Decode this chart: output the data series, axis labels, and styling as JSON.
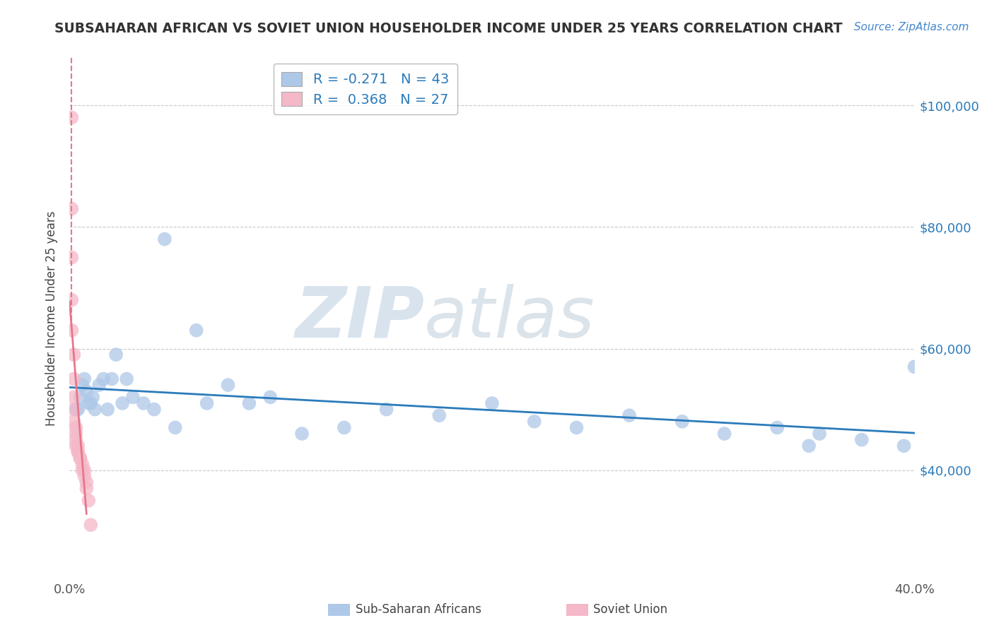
{
  "title": "SUBSAHARAN AFRICAN VS SOVIET UNION HOUSEHOLDER INCOME UNDER 25 YEARS CORRELATION CHART",
  "source": "Source: ZipAtlas.com",
  "ylabel": "Householder Income Under 25 years",
  "xlim": [
    0.0,
    0.4
  ],
  "ylim": [
    22000,
    108000
  ],
  "yticks": [
    40000,
    60000,
    80000,
    100000
  ],
  "ytick_labels": [
    "$40,000",
    "$60,000",
    "$80,000",
    "$100,000"
  ],
  "xticks": [
    0.0,
    0.05,
    0.1,
    0.15,
    0.2,
    0.25,
    0.3,
    0.35,
    0.4
  ],
  "xtick_labels": [
    "0.0%",
    "",
    "",
    "",
    "",
    "",
    "",
    "",
    "40.0%"
  ],
  "blue_R": -0.271,
  "blue_N": 43,
  "pink_R": 0.368,
  "pink_N": 27,
  "blue_color": "#aec8e8",
  "pink_color": "#f4b8c8",
  "blue_line_color": "#2b7bba",
  "pink_line_color": "#e8768a",
  "watermark_ZIP": "ZIP",
  "watermark_atlas": "atlas",
  "blue_scatter_x": [
    0.003,
    0.004,
    0.005,
    0.006,
    0.007,
    0.008,
    0.009,
    0.01,
    0.011,
    0.012,
    0.014,
    0.016,
    0.018,
    0.02,
    0.022,
    0.025,
    0.027,
    0.03,
    0.035,
    0.04,
    0.045,
    0.05,
    0.06,
    0.065,
    0.075,
    0.085,
    0.095,
    0.11,
    0.13,
    0.15,
    0.175,
    0.2,
    0.22,
    0.24,
    0.265,
    0.29,
    0.31,
    0.335,
    0.355,
    0.375,
    0.395,
    0.4,
    0.35
  ],
  "blue_scatter_y": [
    50000,
    50000,
    52000,
    54000,
    55000,
    53000,
    51000,
    51000,
    52000,
    50000,
    54000,
    55000,
    50000,
    55000,
    59000,
    51000,
    55000,
    52000,
    51000,
    50000,
    78000,
    47000,
    63000,
    51000,
    54000,
    51000,
    52000,
    46000,
    47000,
    50000,
    49000,
    51000,
    48000,
    47000,
    49000,
    48000,
    46000,
    47000,
    46000,
    45000,
    44000,
    57000,
    44000
  ],
  "pink_scatter_x": [
    0.001,
    0.001,
    0.001,
    0.001,
    0.001,
    0.002,
    0.002,
    0.002,
    0.002,
    0.002,
    0.003,
    0.003,
    0.003,
    0.003,
    0.004,
    0.004,
    0.004,
    0.005,
    0.005,
    0.006,
    0.006,
    0.007,
    0.007,
    0.008,
    0.008,
    0.009,
    0.01
  ],
  "pink_scatter_y": [
    98000,
    83000,
    75000,
    68000,
    63000,
    59000,
    55000,
    52000,
    50000,
    48000,
    47000,
    46000,
    45000,
    44000,
    44000,
    43000,
    43000,
    42000,
    42000,
    41000,
    40000,
    40000,
    39000,
    38000,
    37000,
    35000,
    31000
  ],
  "pink_line_x_start": -0.002,
  "pink_line_x_end": 0.016,
  "blue_line_x_start": 0.0,
  "blue_line_x_end": 0.4,
  "background_color": "#ffffff",
  "grid_color": "#c8c8c8"
}
